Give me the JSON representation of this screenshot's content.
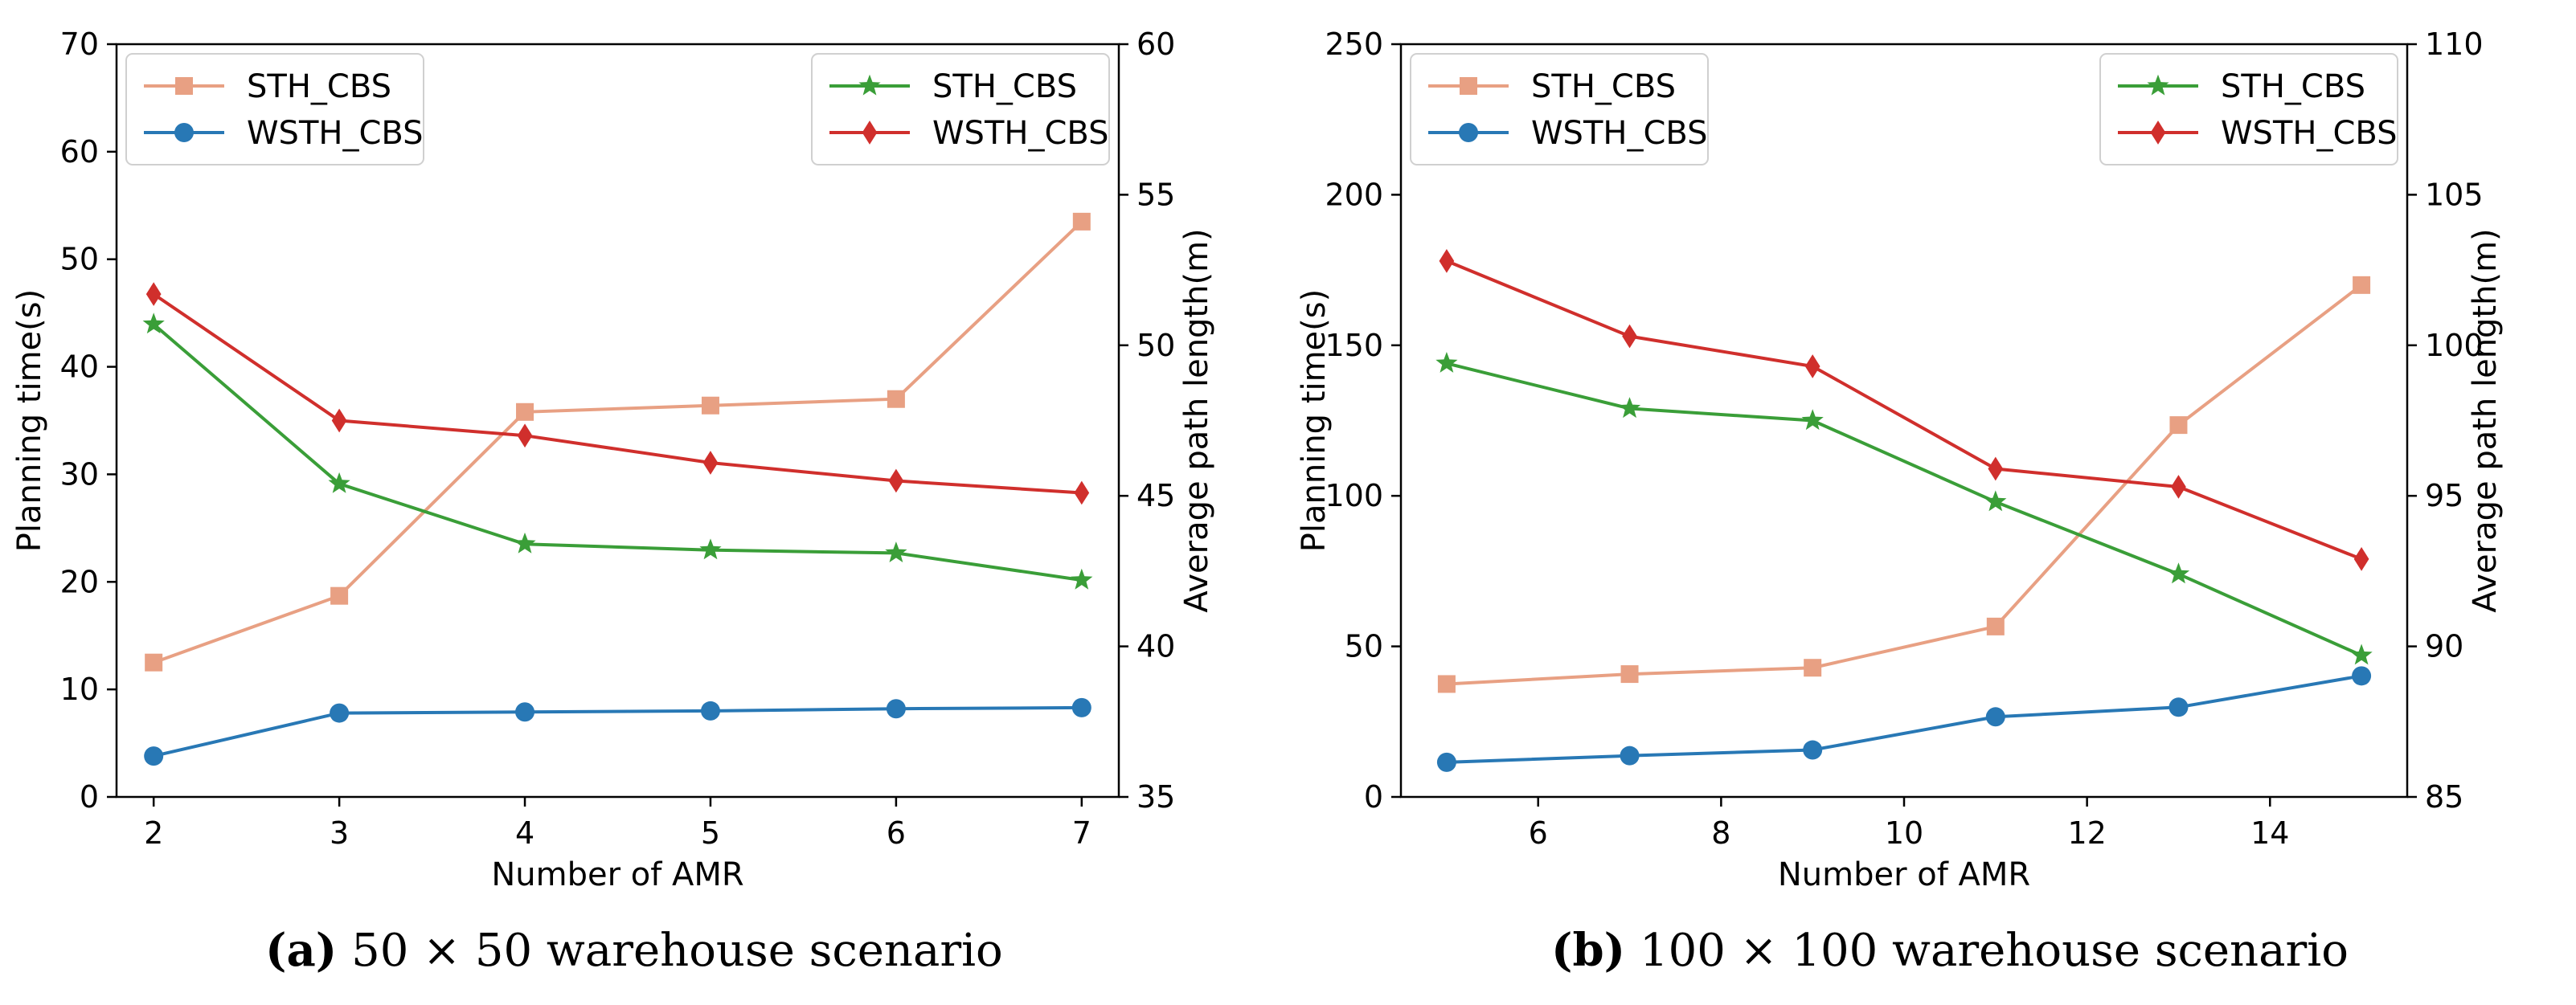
{
  "chart_data": [
    {
      "type": "line",
      "xlabel": "Number of AMR",
      "ylabel": "Planning time(s)",
      "y2label": "Average path length(m)",
      "x": [
        2,
        3,
        4,
        5,
        6,
        7
      ],
      "xlim": [
        1.8,
        7.2
      ],
      "xticks": [
        2,
        3,
        4,
        5,
        6,
        7
      ],
      "ylim": [
        0,
        70
      ],
      "yticks": [
        0,
        10,
        20,
        30,
        40,
        50,
        60,
        70
      ],
      "y2lim": [
        35,
        60
      ],
      "y2ticks": [
        35,
        40,
        45,
        50,
        55,
        60
      ],
      "series": [
        {
          "name": "STH_CBS",
          "axis": "left",
          "marker": "square",
          "color": "#e8a083",
          "values": [
            12.5,
            18.7,
            35.8,
            36.4,
            37.0,
            53.5
          ]
        },
        {
          "name": "WSTH_CBS",
          "axis": "left",
          "marker": "circle",
          "color": "#2878b5",
          "values": [
            3.8,
            7.8,
            7.9,
            8.0,
            8.2,
            8.3
          ]
        },
        {
          "name": "STH_CBS",
          "axis": "right",
          "marker": "star",
          "color": "#3a9e38",
          "values": [
            50.7,
            45.4,
            43.4,
            43.2,
            43.1,
            42.2
          ]
        },
        {
          "name": "WSTH_CBS",
          "axis": "right",
          "marker": "diamond",
          "color": "#d02f2c",
          "values": [
            51.7,
            47.5,
            47.0,
            46.1,
            45.5,
            45.1
          ]
        }
      ],
      "legend_left": "top-left",
      "legend_right": "top-right"
    },
    {
      "type": "line",
      "xlabel": "Number of AMR",
      "ylabel": "Planning time(s)",
      "y2label": "Average path length(m)",
      "x": [
        5,
        7,
        9,
        11,
        13,
        15
      ],
      "xlim": [
        4.5,
        15.5
      ],
      "xticks": [
        6,
        8,
        10,
        12,
        14
      ],
      "ylim": [
        0,
        250
      ],
      "yticks": [
        0,
        50,
        100,
        150,
        200,
        250
      ],
      "y2lim": [
        85,
        110
      ],
      "y2ticks": [
        85,
        90,
        95,
        100,
        105,
        110
      ],
      "series": [
        {
          "name": "STH_CBS",
          "axis": "left",
          "marker": "square",
          "color": "#e8a083",
          "values": [
            37.5,
            40.8,
            42.9,
            56.6,
            123.5,
            170.0
          ]
        },
        {
          "name": "WSTH_CBS",
          "axis": "left",
          "marker": "circle",
          "color": "#2878b5",
          "values": [
            11.5,
            13.7,
            15.6,
            26.6,
            29.8,
            40.2
          ]
        },
        {
          "name": "STH_CBS",
          "axis": "right",
          "marker": "star",
          "color": "#3a9e38",
          "values": [
            99.4,
            97.9,
            97.5,
            94.8,
            92.4,
            89.7
          ]
        },
        {
          "name": "WSTH_CBS",
          "axis": "right",
          "marker": "diamond",
          "color": "#d02f2c",
          "values": [
            102.8,
            100.3,
            99.3,
            95.9,
            95.3,
            92.9
          ]
        }
      ],
      "legend_left": "top-left",
      "legend_right": "top-right"
    }
  ],
  "captions": {
    "a_label": "(a)",
    "a_text": " 50 × 50 warehouse scenario",
    "b_label": "(b)",
    "b_text": " 100 × 100 warehouse scenario"
  }
}
